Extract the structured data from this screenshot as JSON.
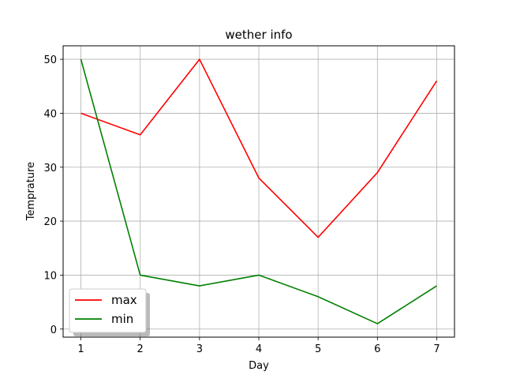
{
  "chart_data": {
    "type": "line",
    "title": "wether info",
    "xlabel": "Day",
    "ylabel": "Temprature",
    "x": [
      1,
      2,
      3,
      4,
      5,
      6,
      7
    ],
    "xlim": [
      0.7,
      7.3
    ],
    "ylim": [
      -1.5,
      52.5
    ],
    "xticks": [
      "1",
      "2",
      "3",
      "4",
      "5",
      "6",
      "7"
    ],
    "yticks": [
      "0",
      "10",
      "20",
      "30",
      "40",
      "50"
    ],
    "grid": true,
    "legend_position": "lower-left",
    "series": [
      {
        "name": "max",
        "color": "#ff0000",
        "values": [
          40,
          36,
          50,
          28,
          17,
          29,
          46
        ]
      },
      {
        "name": "min",
        "color": "#008000",
        "values": [
          50,
          10,
          8,
          10,
          6,
          1,
          8
        ]
      }
    ]
  }
}
